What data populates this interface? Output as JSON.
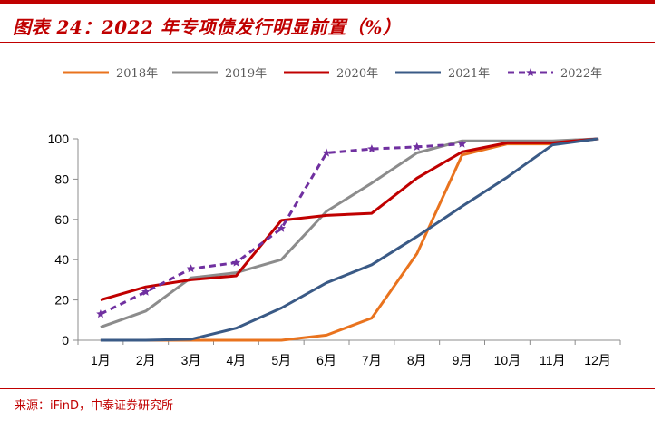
{
  "header": {
    "title": "图表 24：2022 年专项债发行明显前置（%）"
  },
  "footer": {
    "source": "来源：iFinD，中泰证券研究所"
  },
  "chart_data": {
    "type": "line",
    "title": "图表 24：2022 年专项债发行明显前置（%）",
    "xlabel": "",
    "ylabel": "",
    "categories": [
      "1月",
      "2月",
      "3月",
      "4月",
      "5月",
      "6月",
      "7月",
      "8月",
      "9月",
      "10月",
      "11月",
      "12月"
    ],
    "ylim": [
      0,
      100
    ],
    "yticks": [
      0,
      20,
      40,
      60,
      80,
      100
    ],
    "legend_position": "top",
    "series": [
      {
        "name": "2018年",
        "color": "#e9731e",
        "dash": false,
        "marker": false,
        "values": [
          0,
          0,
          0,
          0,
          0,
          2.5,
          11,
          43,
          92,
          97.5,
          97.5,
          100
        ]
      },
      {
        "name": "2019年",
        "color": "#8c8c8c",
        "dash": false,
        "marker": false,
        "values": [
          6.5,
          14.5,
          31,
          33.5,
          40,
          64,
          78,
          93,
          99,
          99,
          99,
          100
        ]
      },
      {
        "name": "2020年",
        "color": "#c00000",
        "dash": false,
        "marker": false,
        "values": [
          20,
          26.5,
          30,
          32,
          59.5,
          62,
          63,
          80.5,
          93.5,
          98,
          98,
          100
        ]
      },
      {
        "name": "2021年",
        "color": "#3a5a86",
        "dash": false,
        "marker": false,
        "values": [
          0,
          0,
          0.5,
          6,
          16,
          28.5,
          37.5,
          51.5,
          66.5,
          81,
          97,
          100
        ]
      },
      {
        "name": "2022年",
        "color": "#7030a0",
        "dash": true,
        "marker": true,
        "values": [
          13,
          24,
          35.5,
          38.5,
          55.5,
          93,
          95,
          96,
          97.5,
          null,
          null,
          null
        ]
      }
    ]
  }
}
